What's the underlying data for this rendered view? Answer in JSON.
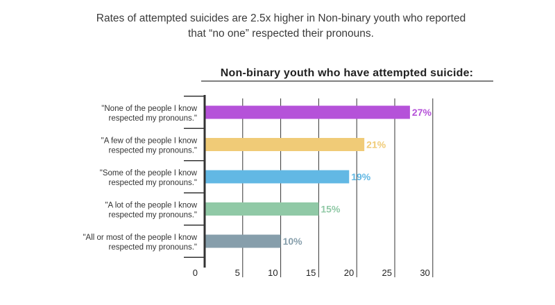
{
  "caption": {
    "line1": "Rates of attempted suicides are 2.5x higher in Non-binary youth who reported",
    "line2": "that “no one” respected their pronouns."
  },
  "chart_data": {
    "type": "bar",
    "orientation": "horizontal",
    "title": "Non-binary youth who have attempted suicide:",
    "xlabel": "",
    "ylabel": "",
    "xlim": [
      0,
      30
    ],
    "xticks": [
      "0",
      "5",
      "10",
      "15",
      "20",
      "25",
      "30"
    ],
    "grid": true,
    "categories": [
      [
        "\"None of the people I know",
        "respected my pronouns.\""
      ],
      [
        "\"A few of the people I know",
        "respected my pronouns.\""
      ],
      [
        "\"Some of the people I know",
        "respected my pronouns.\""
      ],
      [
        "\"A lot of the people I know",
        "respected my pronouns.\""
      ],
      [
        "\"All or most of the people I know",
        "respected my pronouns.\""
      ]
    ],
    "values": [
      27,
      21,
      19,
      15,
      10
    ],
    "value_labels": [
      "27%",
      "21%",
      "19%",
      "15%",
      "10%"
    ],
    "colors": [
      "#b552d9",
      "#f0cb77",
      "#62b8e4",
      "#90c9a6",
      "#869eab"
    ]
  }
}
